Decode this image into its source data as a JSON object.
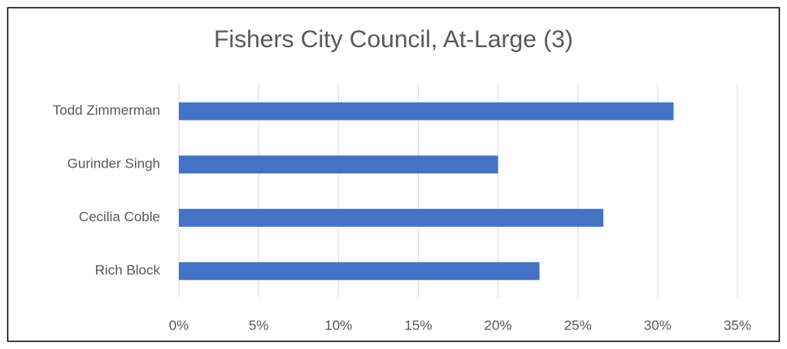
{
  "chart_data": {
    "type": "bar",
    "orientation": "horizontal",
    "title": "Fishers City Council, At-Large (3)",
    "categories": [
      "Todd Zimmerman",
      "Gurinder Singh",
      "Cecilia Coble",
      "Rich Block"
    ],
    "values": [
      31.0,
      20.0,
      26.6,
      22.6
    ],
    "color": "#4472c4",
    "xlim": [
      0,
      35
    ],
    "xticks": [
      {
        "value": 0,
        "label": "0%"
      },
      {
        "value": 5,
        "label": "5%"
      },
      {
        "value": 10,
        "label": "10%"
      },
      {
        "value": 15,
        "label": "15%"
      },
      {
        "value": 20,
        "label": "20%"
      },
      {
        "value": 25,
        "label": "25%"
      },
      {
        "value": 30,
        "label": "30%"
      },
      {
        "value": 35,
        "label": "35%"
      }
    ],
    "grid": true
  }
}
